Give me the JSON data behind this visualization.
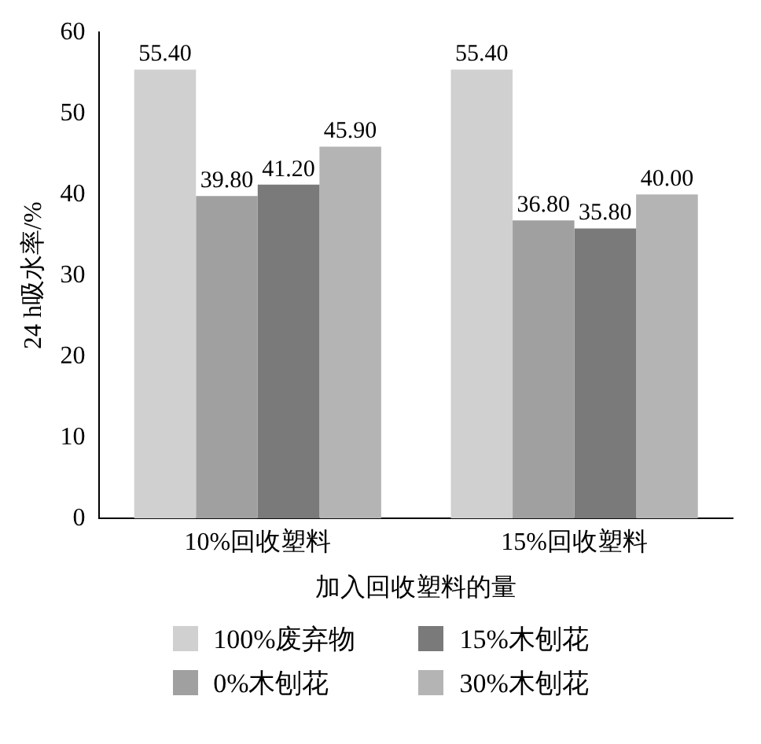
{
  "chart_data": {
    "type": "bar",
    "xlabel": "加入回收塑料的量",
    "ylabel": "24 h吸水率/%",
    "categories": [
      "10%回收塑料",
      "15%回收塑料"
    ],
    "series": [
      {
        "name": "100%废弃物",
        "color": "#d0d0d0",
        "values": [
          55.4,
          55.4
        ],
        "value_labels": [
          "55.40",
          "55.40"
        ]
      },
      {
        "name": "0%木刨花",
        "color": "#a0a0a0",
        "values": [
          39.8,
          36.8
        ],
        "value_labels": [
          "39.80",
          "36.80"
        ]
      },
      {
        "name": "15%木刨花",
        "color": "#7a7a7a",
        "values": [
          41.2,
          35.8
        ],
        "value_labels": [
          "41.20",
          "35.80"
        ]
      },
      {
        "name": "30%木刨花",
        "color": "#b4b4b4",
        "values": [
          45.9,
          40.0
        ],
        "value_labels": [
          "45.90",
          "40.00"
        ]
      }
    ],
    "ylim": [
      0,
      60
    ],
    "yticks": [
      0,
      10,
      20,
      30,
      40,
      50,
      60
    ],
    "grid": false,
    "legend": "bottom"
  }
}
